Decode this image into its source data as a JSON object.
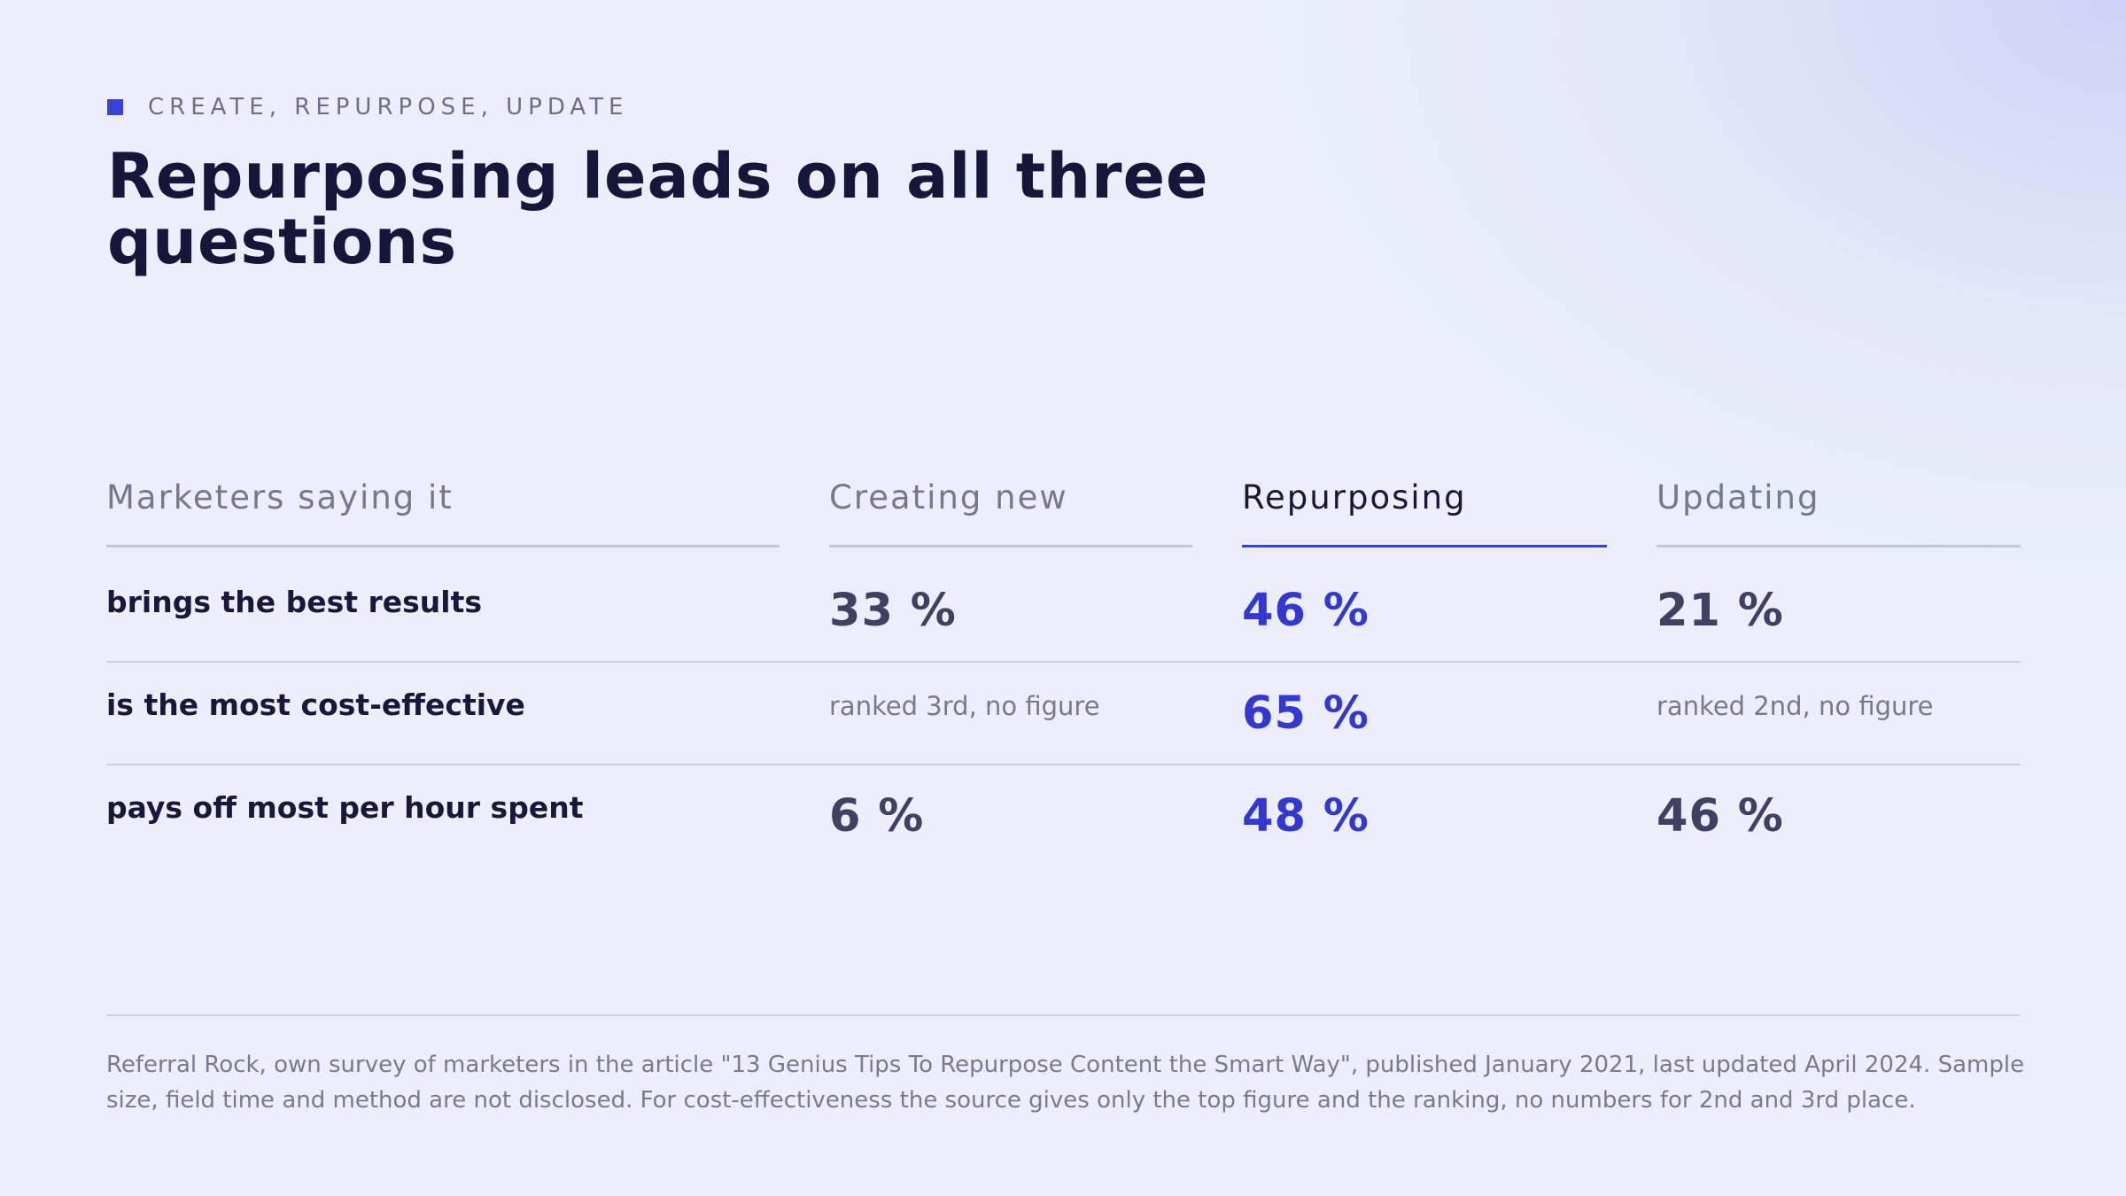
{
  "kicker": "CREATE, REPURPOSE, UPDATE",
  "title": "Repurposing leads on all three questions",
  "accent_color": "#3a41d8",
  "table": {
    "headers": [
      "Marketers saying it",
      "Creating new",
      "Repurposing",
      "Updating"
    ],
    "highlighted_column": "Repurposing",
    "rows": [
      {
        "label": "brings the best results",
        "creating": "33 %",
        "repurposing": "46 %",
        "updating": "21 %"
      },
      {
        "label": "is the most cost-effective",
        "creating": "ranked 3rd, no figure",
        "repurposing": "65 %",
        "updating": "ranked 2nd, no figure"
      },
      {
        "label": "pays off most per hour spent",
        "creating": "6 %",
        "repurposing": "48 %",
        "updating": "46 %"
      }
    ]
  },
  "chart_data": {
    "type": "table",
    "columns": [
      "Marketers saying it",
      "Creating new",
      "Repurposing",
      "Updating"
    ],
    "rows": [
      [
        "brings the best results",
        33,
        46,
        21
      ],
      [
        "is the most cost-effective",
        "ranked 3rd, no figure",
        65,
        "ranked 2nd, no figure"
      ],
      [
        "pays off most per hour spent",
        6,
        48,
        46
      ]
    ],
    "unit": "%"
  },
  "source": "Referral Rock, own survey of marketers in the article \"13 Genius Tips To Repurpose Content the Smart Way\", published January 2021, last updated April 2024. Sample size, field time and method are not disclosed. For cost-effectiveness the source gives only the top figure and the ranking, no numbers for 2nd and 3rd place."
}
